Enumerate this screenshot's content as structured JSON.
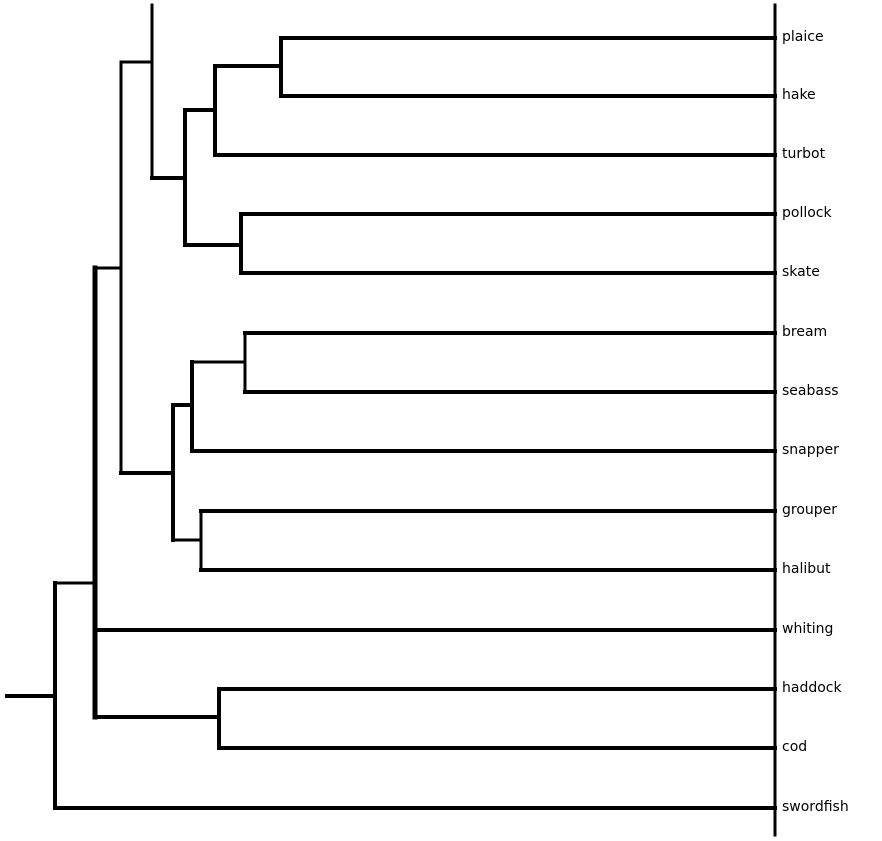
{
  "chart_data": {
    "type": "dendrogram",
    "orientation": "left-to-right",
    "leaves": [
      "plaice",
      "hake",
      "turbot",
      "pollock",
      "skate",
      "bream",
      "seabass",
      "snapper",
      "grouper",
      "halibut",
      "whiting",
      "haddock",
      "cod",
      "swordfish"
    ],
    "tree": [
      [
        [
          [
            [
              "plaice",
              "hake"
            ],
            "turbot"
          ],
          [
            "pollock",
            "skate"
          ]
        ],
        [
          [
            [
              "bream",
              "seabass"
            ],
            "snapper"
          ],
          [
            "grouper",
            "halibut"
          ]
        ]
      ],
      "whiting",
      [
        "haddock",
        "cod"
      ],
      "swordfish"
    ],
    "line_color": "#000000"
  }
}
